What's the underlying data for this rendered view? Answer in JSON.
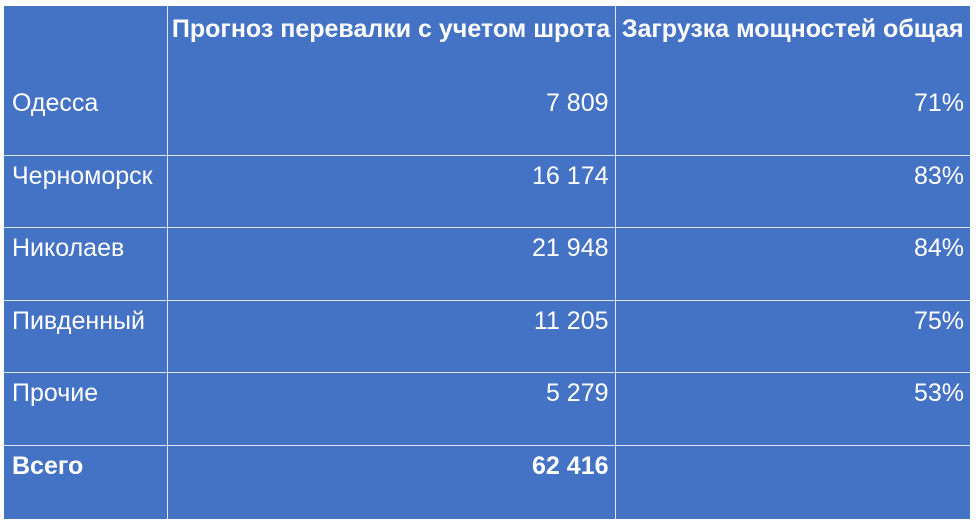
{
  "table": {
    "headers": [
      "",
      "Прогноз перевалки с учетом шрота",
      "Загрузка мощностей общая"
    ],
    "rows": [
      {
        "name": "Одесса",
        "volume": "7 809",
        "load": "71%"
      },
      {
        "name": "Черноморск",
        "volume": "16 174",
        "load": "83%"
      },
      {
        "name": "Николаев",
        "volume": "21 948",
        "load": "84%"
      },
      {
        "name": "Пивденный",
        "volume": "11 205",
        "load": "75%"
      },
      {
        "name": "Прочие",
        "volume": "5 279",
        "load": "53%"
      }
    ],
    "total": {
      "name": "Всего",
      "volume": "62 416",
      "load": ""
    }
  },
  "colors": {
    "background": "#4472c4",
    "text": "#ffffff",
    "grid": "#dfe6f5"
  }
}
